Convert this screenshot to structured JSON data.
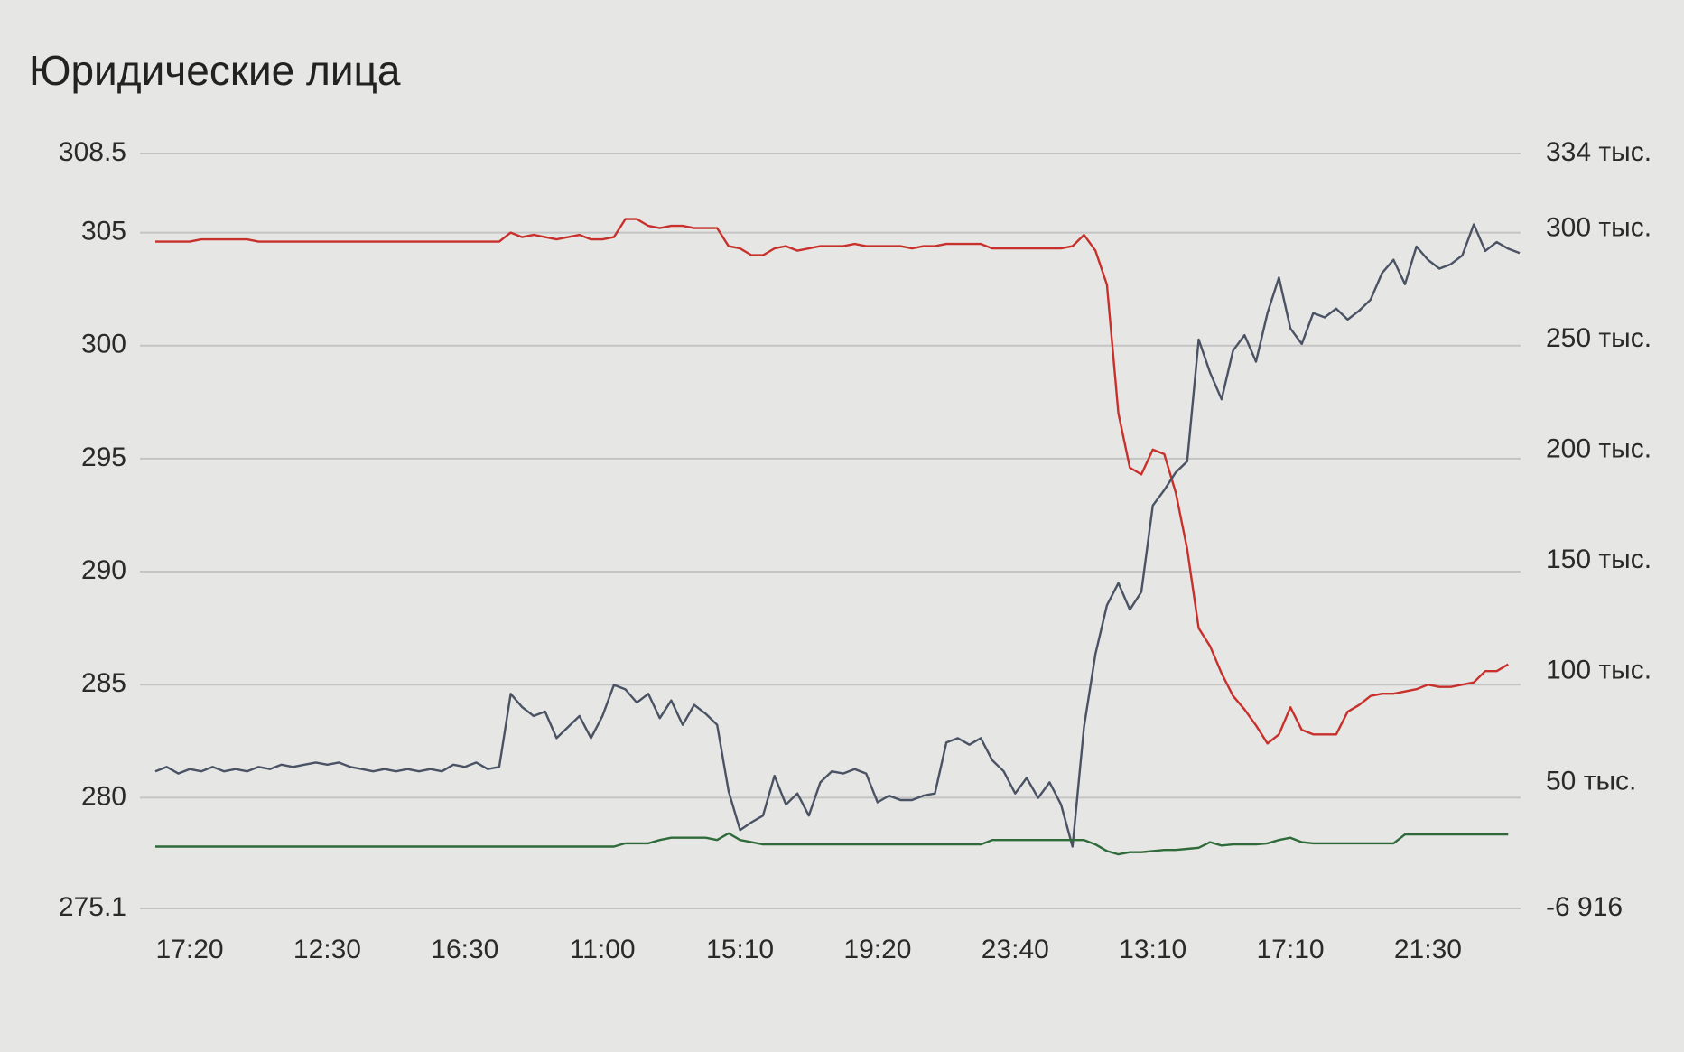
{
  "chart_data": {
    "type": "line",
    "title": "Юридические лица",
    "categories": [
      null,
      null,
      null,
      "17:20",
      null,
      null,
      null,
      null,
      null,
      null,
      null,
      null,
      null,
      null,
      null,
      "12:30",
      null,
      null,
      null,
      null,
      null,
      null,
      null,
      null,
      null,
      null,
      null,
      "16:30",
      null,
      null,
      null,
      null,
      null,
      null,
      null,
      null,
      null,
      null,
      null,
      "11:00",
      null,
      null,
      null,
      null,
      null,
      null,
      null,
      null,
      null,
      null,
      null,
      "15:10",
      null,
      null,
      null,
      null,
      null,
      null,
      null,
      null,
      null,
      null,
      null,
      "19:20",
      null,
      null,
      null,
      null,
      null,
      null,
      null,
      null,
      null,
      null,
      null,
      "23:40",
      null,
      null,
      null,
      null,
      null,
      null,
      null,
      null,
      null,
      null,
      null,
      "13:10",
      null,
      null,
      null,
      null,
      null,
      null,
      null,
      null,
      null,
      null,
      null,
      "17:10",
      null,
      null,
      null,
      null,
      null,
      null,
      null,
      null,
      null,
      null,
      null,
      "21:30",
      null,
      null,
      null,
      null,
      null,
      null,
      null,
      null
    ],
    "series": [
      {
        "color": "#c8302c",
        "axis": "y",
        "values": [
          304.6,
          304.6,
          304.6,
          304.6,
          304.7,
          304.7,
          304.7,
          304.7,
          304.7,
          304.6,
          304.6,
          304.6,
          304.6,
          304.6,
          304.6,
          304.6,
          304.6,
          304.6,
          304.6,
          304.6,
          304.6,
          304.6,
          304.6,
          304.6,
          304.6,
          304.6,
          304.6,
          304.6,
          304.6,
          304.6,
          304.6,
          305.0,
          304.8,
          304.9,
          304.8,
          304.7,
          304.8,
          304.9,
          304.7,
          304.7,
          304.8,
          305.6,
          305.6,
          305.3,
          305.2,
          305.3,
          305.3,
          305.2,
          305.2,
          305.2,
          304.4,
          304.3,
          304.0,
          304.0,
          304.3,
          304.4,
          304.2,
          304.3,
          304.4,
          304.4,
          304.4,
          304.5,
          304.4,
          304.4,
          304.4,
          304.4,
          304.3,
          304.4,
          304.4,
          304.5,
          304.5,
          304.5,
          304.5,
          304.3,
          304.3,
          304.3,
          304.3,
          304.3,
          304.3,
          304.3,
          304.4,
          304.9,
          304.2,
          302.7,
          297,
          294.6,
          294.3,
          295.4,
          295.2,
          293.5,
          291,
          287.5,
          286.7,
          285.5,
          284.5,
          283.9,
          283.2,
          282.4,
          282.8,
          284.0,
          283.0,
          282.8,
          282.8,
          282.8,
          283.8,
          284.1,
          284.5,
          284.6,
          284.6,
          284.7,
          284.8,
          285.0,
          284.9,
          284.9,
          285.0,
          285.1,
          285.6,
          285.6,
          285.9,
          null
        ]
      },
      {
        "color": "#4a5364",
        "axis": "y2",
        "values": [
          55000,
          57000,
          54000,
          56000,
          55000,
          57000,
          55000,
          56000,
          55000,
          57000,
          56000,
          58000,
          57000,
          58000,
          59000,
          58000,
          59000,
          57000,
          56000,
          55000,
          56000,
          55000,
          56000,
          55000,
          56000,
          55000,
          58000,
          57000,
          59000,
          56000,
          57000,
          90000,
          84000,
          80000,
          82000,
          70000,
          75000,
          80000,
          70000,
          80000,
          94000,
          92000,
          86000,
          90000,
          79000,
          87000,
          76000,
          85000,
          81000,
          76000,
          46000,
          28500,
          32000,
          35000,
          53000,
          40000,
          45000,
          35000,
          50000,
          55000,
          54000,
          56000,
          54000,
          41000,
          44000,
          42000,
          42000,
          44000,
          45000,
          68000,
          70000,
          67000,
          70000,
          60000,
          55000,
          45000,
          52000,
          43000,
          50000,
          40000,
          21000,
          75000,
          108000,
          130000,
          140000,
          128000,
          136000,
          175000,
          182000,
          190000,
          195000,
          250000,
          235000,
          223000,
          245000,
          252000,
          240000,
          262000,
          278000,
          255000,
          248000,
          262000,
          260000,
          264000,
          259000,
          263000,
          268000,
          280000,
          286000,
          275000,
          292000,
          286000,
          282000,
          284000,
          288000,
          302000,
          290000,
          294000,
          291000,
          289000
        ]
      },
      {
        "color": "#2f6a3a",
        "axis": "y2",
        "values": [
          21000,
          21000,
          21000,
          21000,
          21000,
          21000,
          21000,
          21000,
          21000,
          21000,
          21000,
          21000,
          21000,
          21000,
          21000,
          21000,
          21000,
          21000,
          21000,
          21000,
          21000,
          21000,
          21000,
          21000,
          21000,
          21000,
          21000,
          21000,
          21000,
          21000,
          21000,
          21000,
          21000,
          21000,
          21000,
          21000,
          21000,
          21000,
          21000,
          21000,
          21000,
          22500,
          22500,
          22500,
          24000,
          25000,
          25000,
          25000,
          25000,
          24000,
          27000,
          24000,
          23000,
          22000,
          22000,
          22000,
          22000,
          22000,
          22000,
          22000,
          22000,
          22000,
          22000,
          22000,
          22000,
          22000,
          22000,
          22000,
          22000,
          22000,
          22000,
          22000,
          22000,
          24000,
          24000,
          24000,
          24000,
          24000,
          24000,
          24000,
          24000,
          24000,
          22000,
          19000,
          17500,
          18500,
          18500,
          19000,
          19500,
          19500,
          20000,
          20500,
          23000,
          21500,
          22000,
          22000,
          22000,
          22500,
          24000,
          25000,
          23000,
          22500,
          22500,
          22500,
          22500,
          22500,
          22500,
          22500,
          22500,
          26500,
          26500,
          26500,
          26500,
          26500,
          26500,
          26500,
          26500,
          26500,
          26500,
          null
        ]
      }
    ],
    "ylim": [
      275.1,
      308.5
    ],
    "yticks": [
      308.5,
      305,
      300,
      295,
      290,
      285,
      280,
      275.1
    ],
    "y2lim": [
      -6916,
      334000
    ],
    "y2ticks": [
      {
        "value": 334000,
        "label": "334 тыс."
      },
      {
        "value": 300000,
        "label": "300 тыс."
      },
      {
        "value": 250000,
        "label": "250 тыс."
      },
      {
        "value": 200000,
        "label": "200 тыс."
      },
      {
        "value": 150000,
        "label": "150 тыс."
      },
      {
        "value": 100000,
        "label": "100 тыс."
      },
      {
        "value": 50000,
        "label": "50 тыс."
      },
      {
        "value": -6916,
        "label": "-6 916"
      }
    ],
    "grid": true
  }
}
